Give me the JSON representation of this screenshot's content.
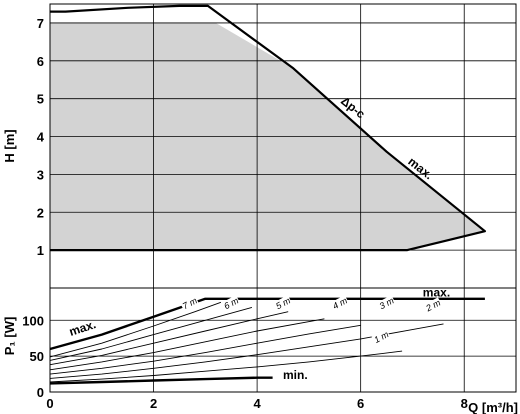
{
  "chart_data": [
    {
      "type": "area",
      "ylabel": "H [m]",
      "xlim": [
        0,
        9
      ],
      "ylim": [
        0,
        7.5
      ],
      "y_ticks": [
        "1",
        "2",
        "3",
        "4",
        "5",
        "6",
        "7"
      ],
      "fill_color": "#d3d3d3",
      "grid": true,
      "operating_area": [
        {
          "x": 0.0,
          "y": 1.0
        },
        {
          "x": 0.0,
          "y": 7.0
        },
        {
          "x": 3.0,
          "y": 7.0
        },
        {
          "x": 3.2,
          "y": 7.0
        },
        {
          "x": 4.7,
          "y": 5.8
        },
        {
          "x": 6.5,
          "y": 3.6
        },
        {
          "x": 8.4,
          "y": 1.5
        },
        {
          "x": 7.5,
          "y": 1.2
        },
        {
          "x": 6.9,
          "y": 1.0
        }
      ],
      "max_curve": [
        {
          "x": 0.0,
          "y": 7.3
        },
        {
          "x": 0.3,
          "y": 7.3
        },
        {
          "x": 1.5,
          "y": 7.4
        },
        {
          "x": 2.5,
          "y": 7.45
        },
        {
          "x": 3.05,
          "y": 7.45
        },
        {
          "x": 4.7,
          "y": 5.8
        },
        {
          "x": 6.5,
          "y": 3.6
        },
        {
          "x": 8.4,
          "y": 1.5
        },
        {
          "x": 7.5,
          "y": 1.2
        },
        {
          "x": 6.9,
          "y": 1.0
        },
        {
          "x": 0.0,
          "y": 1.0
        }
      ],
      "annotations": [
        {
          "text": "Δp-c",
          "x": 5.6,
          "y": 4.9
        },
        {
          "text": "max.",
          "x": 6.9,
          "y": 3.3
        }
      ]
    },
    {
      "type": "line",
      "ylabel": "P₁ [W]",
      "xlabel": "Q [m³/h]",
      "xlim": [
        0,
        9
      ],
      "ylim": [
        0,
        145
      ],
      "x_ticks": [
        "0",
        "2",
        "4",
        "6",
        "8"
      ],
      "y_ticks": [
        "0",
        "50",
        "100"
      ],
      "grid": true,
      "series": [
        {
          "label": "max.",
          "style": "thick",
          "points": [
            {
              "x": 0.0,
              "y": 60
            },
            {
              "x": 1.0,
              "y": 80
            },
            {
              "x": 2.0,
              "y": 105
            },
            {
              "x": 3.0,
              "y": 130
            },
            {
              "x": 3.2,
              "y": 130
            },
            {
              "x": 8.4,
              "y": 130
            }
          ]
        },
        {
          "label": "7 m",
          "style": "thin",
          "points": [
            {
              "x": 0.0,
              "y": 49
            },
            {
              "x": 1.0,
              "y": 68
            },
            {
              "x": 2.0,
              "y": 92
            },
            {
              "x": 2.8,
              "y": 112
            },
            {
              "x": 3.3,
              "y": 125
            }
          ]
        },
        {
          "label": "6 m",
          "style": "thin",
          "points": [
            {
              "x": 0.0,
              "y": 44
            },
            {
              "x": 1.0,
              "y": 60
            },
            {
              "x": 2.0,
              "y": 80
            },
            {
              "x": 3.0,
              "y": 100
            },
            {
              "x": 3.9,
              "y": 118
            }
          ]
        },
        {
          "label": "5 m",
          "style": "thin",
          "points": [
            {
              "x": 0.0,
              "y": 38
            },
            {
              "x": 1.0,
              "y": 51
            },
            {
              "x": 2.0,
              "y": 68
            },
            {
              "x": 3.0,
              "y": 85
            },
            {
              "x": 4.0,
              "y": 102
            },
            {
              "x": 4.6,
              "y": 112
            }
          ]
        },
        {
          "label": "4 m",
          "style": "thin",
          "points": [
            {
              "x": 0.0,
              "y": 31
            },
            {
              "x": 1.0,
              "y": 42
            },
            {
              "x": 2.0,
              "y": 55
            },
            {
              "x": 3.0,
              "y": 70
            },
            {
              "x": 4.0,
              "y": 85
            },
            {
              "x": 5.3,
              "y": 102
            }
          ]
        },
        {
          "label": "3 m",
          "style": "thin",
          "points": [
            {
              "x": 0.0,
              "y": 25
            },
            {
              "x": 1.0,
              "y": 33
            },
            {
              "x": 2.0,
              "y": 43
            },
            {
              "x": 3.0,
              "y": 55
            },
            {
              "x": 4.0,
              "y": 68
            },
            {
              "x": 5.0,
              "y": 81
            },
            {
              "x": 6.0,
              "y": 93
            }
          ]
        },
        {
          "label": "2 m",
          "style": "thin",
          "points": [
            {
              "x": 0.0,
              "y": 19
            },
            {
              "x": 1.0,
              "y": 25
            },
            {
              "x": 2.0,
              "y": 33
            },
            {
              "x": 3.0,
              "y": 42
            },
            {
              "x": 4.0,
              "y": 52
            },
            {
              "x": 5.0,
              "y": 63
            },
            {
              "x": 6.0,
              "y": 74
            },
            {
              "x": 7.0,
              "y": 87
            },
            {
              "x": 7.6,
              "y": 95
            }
          ]
        },
        {
          "label": "1 m",
          "style": "thin",
          "points": [
            {
              "x": 0.0,
              "y": 14
            },
            {
              "x": 1.0,
              "y": 18
            },
            {
              "x": 2.0,
              "y": 23
            },
            {
              "x": 3.0,
              "y": 29
            },
            {
              "x": 4.0,
              "y": 35
            },
            {
              "x": 5.0,
              "y": 42
            },
            {
              "x": 6.0,
              "y": 50
            },
            {
              "x": 6.8,
              "y": 57
            }
          ]
        },
        {
          "label": "min.",
          "style": "thick",
          "points": [
            {
              "x": 0.0,
              "y": 12
            },
            {
              "x": 1.0,
              "y": 14
            },
            {
              "x": 2.0,
              "y": 16
            },
            {
              "x": 3.0,
              "y": 18
            },
            {
              "x": 4.0,
              "y": 20
            },
            {
              "x": 4.3,
              "y": 20
            }
          ]
        }
      ],
      "annotations": [
        {
          "text": "max.",
          "x": 7.2,
          "y": 133
        },
        {
          "text": "max.",
          "x": 0.4,
          "y": 78
        },
        {
          "text": "min.",
          "x": 4.5,
          "y": 18
        },
        {
          "text": "7 m",
          "x": 2.6,
          "y": 115
        },
        {
          "text": "6 m",
          "x": 3.4,
          "y": 115
        },
        {
          "text": "5 m",
          "x": 4.4,
          "y": 115
        },
        {
          "text": "4 m",
          "x": 5.5,
          "y": 115
        },
        {
          "text": "3 m",
          "x": 6.4,
          "y": 115
        },
        {
          "text": "2 m",
          "x": 7.3,
          "y": 112
        },
        {
          "text": "1 m",
          "x": 6.3,
          "y": 68
        }
      ]
    }
  ]
}
